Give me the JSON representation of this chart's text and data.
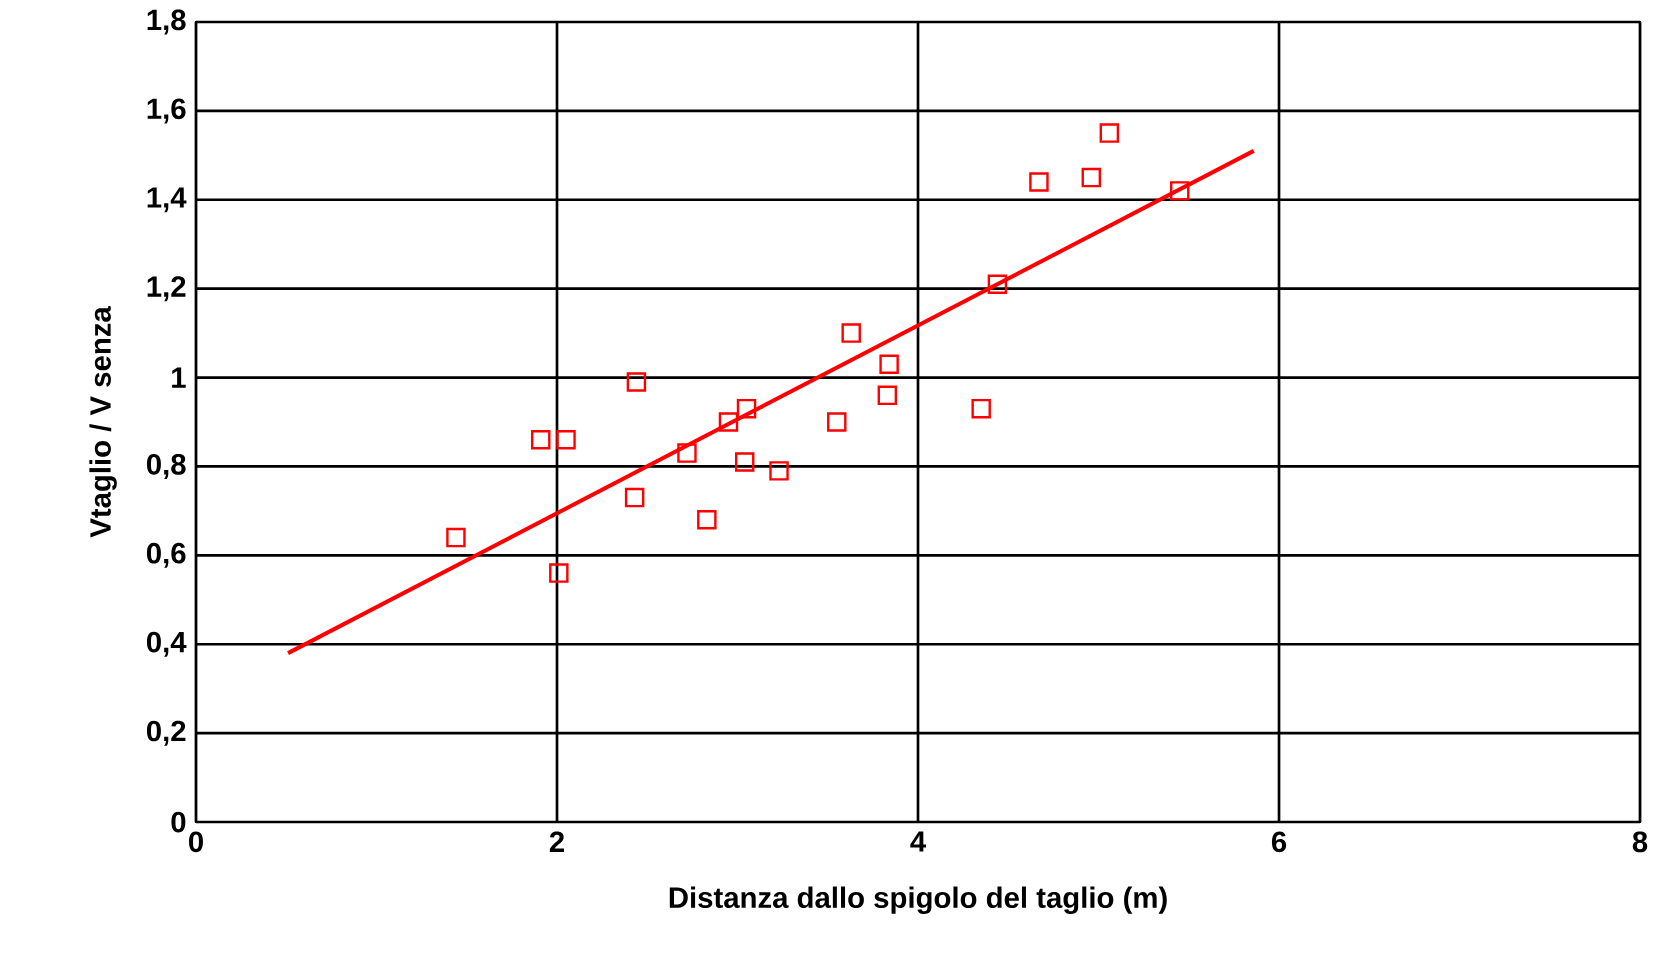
{
  "chart_data": {
    "type": "scatter",
    "xlabel": "Distanza dallo spigolo del taglio (m)",
    "ylabel": "Vtaglio / V senza",
    "xlim": [
      0,
      8
    ],
    "xticks": [
      0,
      2,
      4,
      6,
      8
    ],
    "ylim": [
      0,
      1.8
    ],
    "yticks": [
      {
        "value": 0,
        "label": "0"
      },
      {
        "value": 0.2,
        "label": "0,2"
      },
      {
        "value": 0.4,
        "label": "0,4"
      },
      {
        "value": 0.6,
        "label": "0,6"
      },
      {
        "value": 0.8,
        "label": "0,8"
      },
      {
        "value": 1,
        "label": "1"
      },
      {
        "value": 1.2,
        "label": "1,2"
      },
      {
        "value": 1.4,
        "label": "1,4"
      },
      {
        "value": 1.6,
        "label": "1,6"
      },
      {
        "value": 1.8,
        "label": "1,8"
      }
    ],
    "grid": true,
    "series": [
      {
        "marker": "square",
        "color": "#ff0000",
        "x": [
          1.44,
          1.91,
          2.05,
          2.01,
          2.44,
          2.43,
          2.72,
          2.83,
          2.95,
          3.05,
          3.04,
          3.23,
          3.55,
          3.63,
          3.84,
          3.83,
          4.35,
          4.44,
          4.67,
          4.96,
          5.06,
          5.45
        ],
        "values": [
          0.64,
          0.86,
          0.86,
          0.56,
          0.99,
          0.73,
          0.83,
          0.68,
          0.9,
          0.93,
          0.81,
          0.79,
          0.9,
          1.1,
          1.03,
          0.96,
          0.93,
          1.21,
          1.44,
          1.45,
          1.55,
          1.42
        ]
      },
      {
        "type": "line",
        "marker": "none",
        "color": "#ff0000",
        "x": [
          0.51,
          5.86
        ],
        "values": [
          0.38,
          1.51
        ]
      }
    ]
  }
}
